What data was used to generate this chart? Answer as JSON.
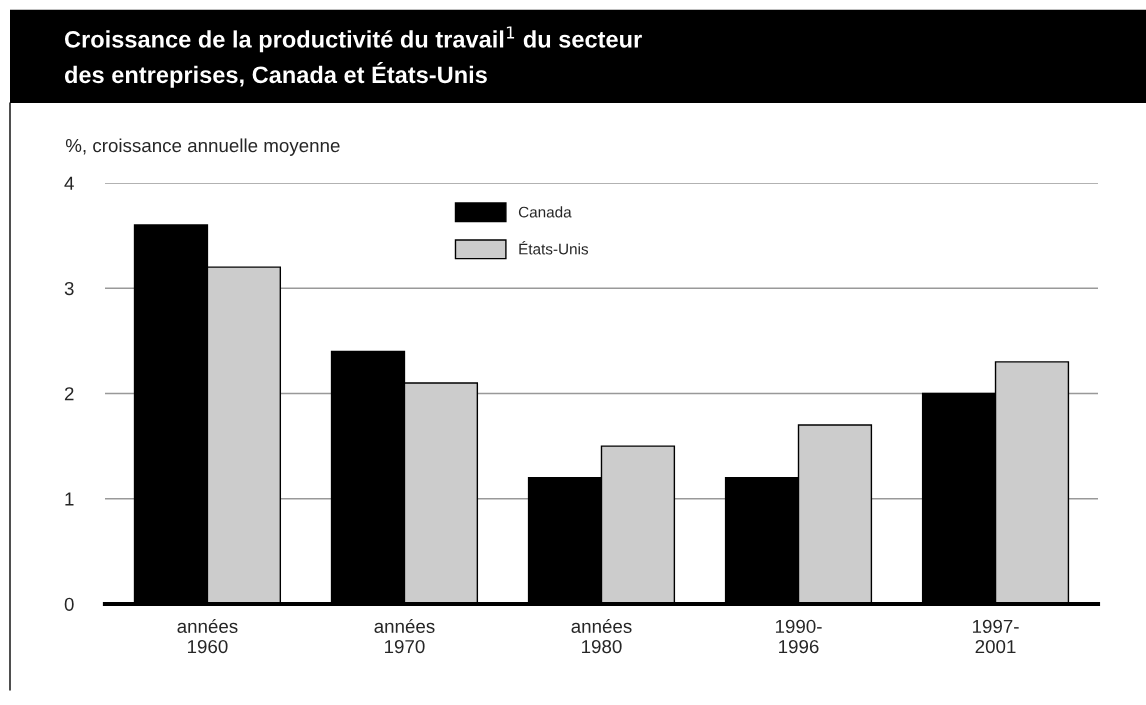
{
  "chart_data": {
    "type": "bar",
    "title": "Croissance de la productivité du travail$^{1}$ du secteur\ndes entreprises, Canada et États-Unis",
    "ylabel": "%, croissance annuelle moyenne",
    "categories": [
      "années\n1960",
      "années\n1970",
      "années\n1980",
      "1990-\n1996",
      "1997-\n2001"
    ],
    "series": [
      {
        "name": "Canada",
        "color": "#000000",
        "values": [
          3.6,
          2.4,
          1.2,
          1.2,
          2.0
        ]
      },
      {
        "name": "États-Unis",
        "color": "#cccccc",
        "values": [
          3.2,
          2.1,
          1.5,
          1.7,
          2.3
        ]
      }
    ],
    "ylim": [
      0,
      4
    ],
    "yticks": [
      0,
      1,
      2,
      3,
      4
    ],
    "grid": "y",
    "legend": "top"
  }
}
